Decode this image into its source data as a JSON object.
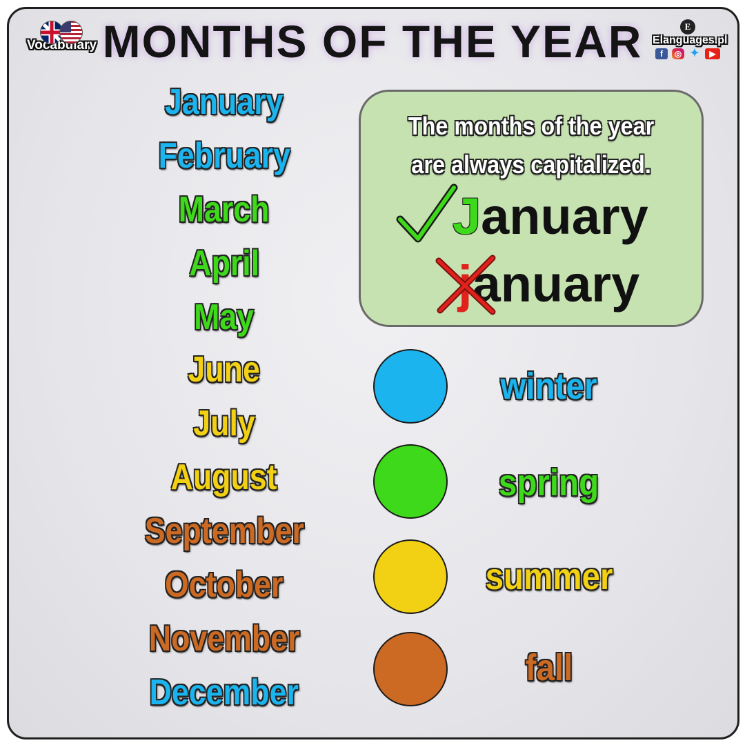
{
  "header": {
    "title": "MONTHS OF THE YEAR",
    "badge_label": "Vocabulary",
    "site_name": "Elanguages.pl",
    "logo_mark": "E",
    "flags": [
      "uk-flag-icon",
      "us-flag-icon"
    ],
    "socials": [
      "facebook-icon",
      "instagram-icon",
      "twitter-icon",
      "youtube-icon"
    ]
  },
  "colors": {
    "winter": "#1bb4ee",
    "spring": "#3fd91b",
    "summer": "#f2d014",
    "fall": "#cc6a23",
    "note_background": "#c6e2b1"
  },
  "months": [
    {
      "name": "January",
      "season": "winter"
    },
    {
      "name": "February",
      "season": "winter"
    },
    {
      "name": "March",
      "season": "spring"
    },
    {
      "name": "April",
      "season": "spring"
    },
    {
      "name": "May",
      "season": "spring"
    },
    {
      "name": "June",
      "season": "summer"
    },
    {
      "name": "July",
      "season": "summer"
    },
    {
      "name": "August",
      "season": "summer"
    },
    {
      "name": "September",
      "season": "fall"
    },
    {
      "name": "October",
      "season": "fall"
    },
    {
      "name": "November",
      "season": "fall"
    },
    {
      "name": "December",
      "season": "winter"
    }
  ],
  "note": {
    "line1": "The months of the year",
    "line2": "are always capitalized.",
    "correct_first": "J",
    "correct_rest": "anuary",
    "incorrect_first": "j",
    "incorrect_rest": "anuary"
  },
  "seasons": [
    {
      "label": "winter",
      "key": "winter"
    },
    {
      "label": "spring",
      "key": "spring"
    },
    {
      "label": "summer",
      "key": "summer"
    },
    {
      "label": "fall",
      "key": "fall"
    }
  ]
}
